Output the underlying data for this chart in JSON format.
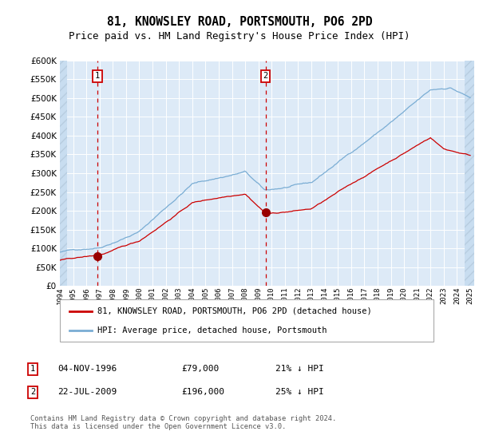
{
  "title": "81, KNOWSLEY ROAD, PORTSMOUTH, PO6 2PD",
  "subtitle": "Price paid vs. HM Land Registry's House Price Index (HPI)",
  "title_fontsize": 10.5,
  "subtitle_fontsize": 9,
  "bg_color": "#ddeaf7",
  "red_line_color": "#cc0000",
  "blue_line_color": "#7aadd4",
  "marker_color": "#990000",
  "vline_color": "#cc0000",
  "grid_color": "#ffffff",
  "ylim": [
    0,
    600000
  ],
  "yticks": [
    0,
    50000,
    100000,
    150000,
    200000,
    250000,
    300000,
    350000,
    400000,
    450000,
    500000,
    550000,
    600000
  ],
  "x_start_year": 1994,
  "x_end_year": 2025,
  "t1_year": 1996.85,
  "t1_price": 79000,
  "t2_year": 2009.55,
  "t2_price": 196000,
  "legend_line1": "81, KNOWSLEY ROAD, PORTSMOUTH, PO6 2PD (detached house)",
  "legend_line2": "HPI: Average price, detached house, Portsmouth",
  "annot1_date_str": "04-NOV-1996",
  "annot1_price": 79000,
  "annot1_pct": "21% ↓ HPI",
  "annot2_date_str": "22-JUL-2009",
  "annot2_price": 196000,
  "annot2_pct": "25% ↓ HPI",
  "footer": "Contains HM Land Registry data © Crown copyright and database right 2024.\nThis data is licensed under the Open Government Licence v3.0."
}
